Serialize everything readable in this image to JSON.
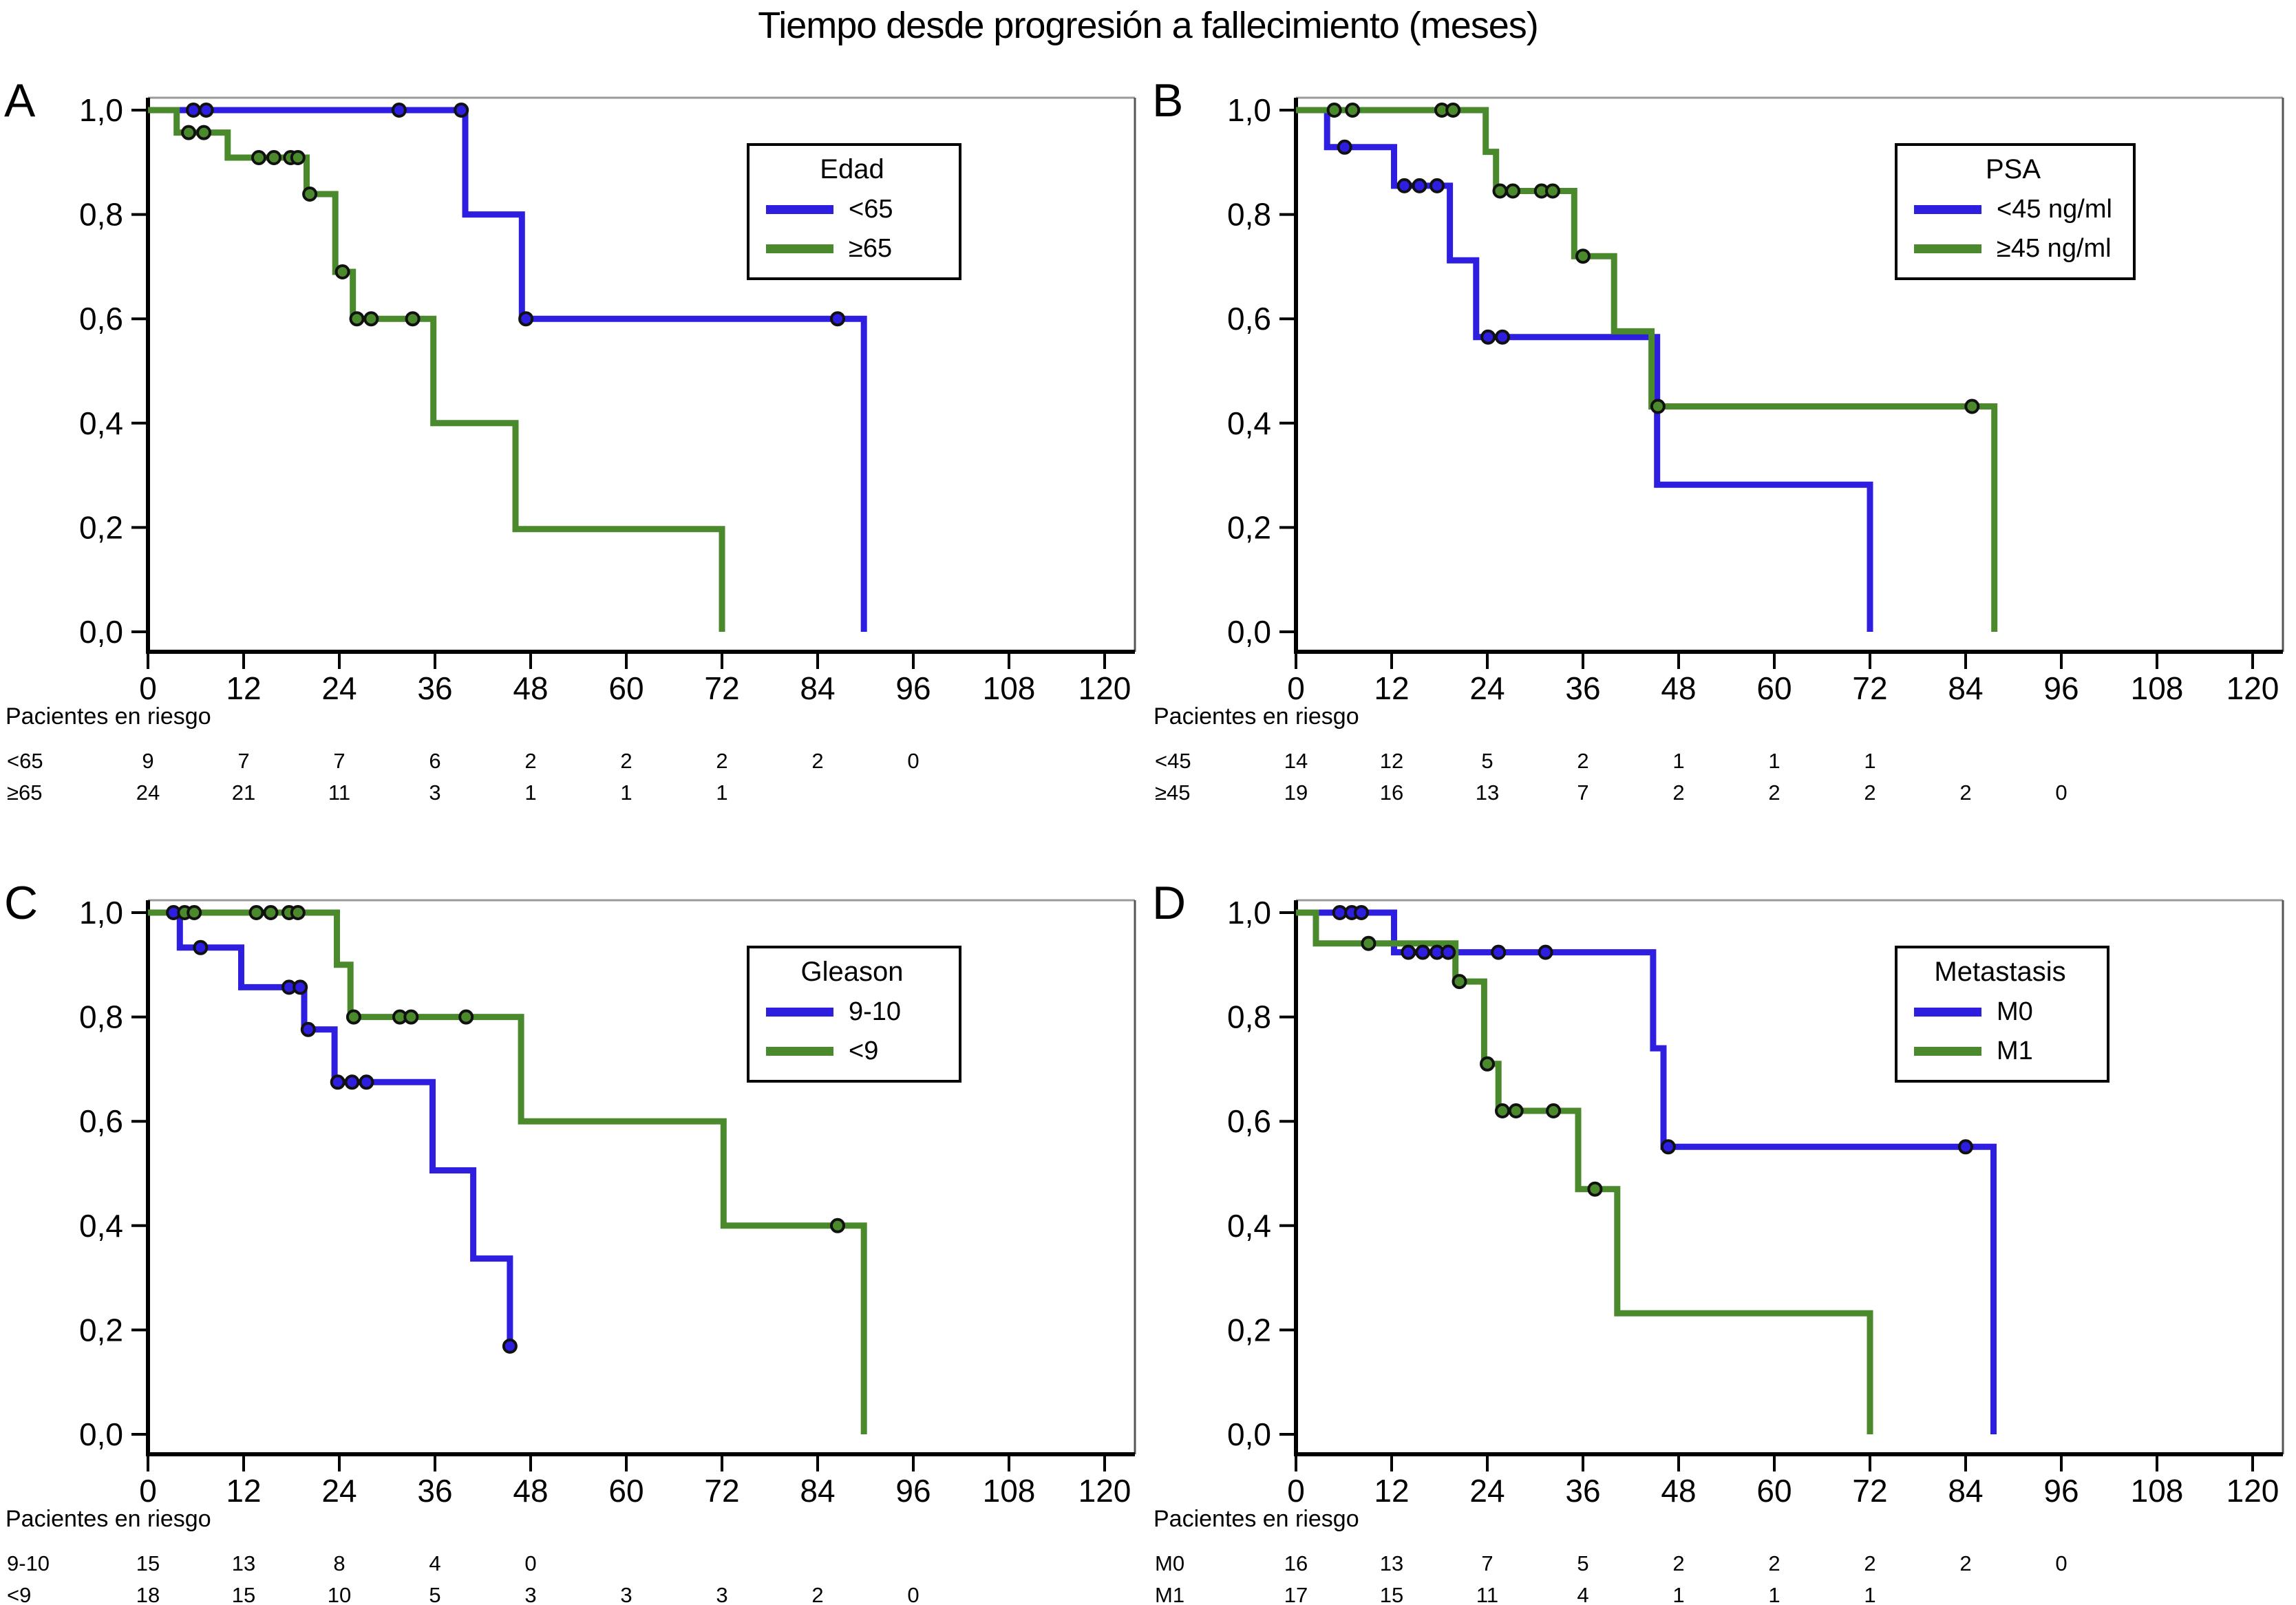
{
  "title": "Tiempo desde progresión a fallecimiento (meses)",
  "risk_header": "Pacientes en riesgo",
  "colors": {
    "blue": "#2d1ee0",
    "green": "#4a8a2c",
    "axis": "#000000",
    "frame_top": "#9a9a9a",
    "frame_right": "#555555",
    "censor_ring": "#111111"
  },
  "axes": {
    "x_ticks": [
      0,
      12,
      24,
      36,
      48,
      60,
      72,
      84,
      96,
      108,
      120
    ],
    "x_range": [
      0,
      120
    ],
    "y_range": [
      0,
      1
    ],
    "y_ticks": [
      {
        "v": 1.0,
        "label": "1,0"
      },
      {
        "v": 0.8,
        "label": "0,8"
      },
      {
        "v": 0.6,
        "label": "0,6"
      },
      {
        "v": 0.4,
        "label": "0,4"
      },
      {
        "v": 0.2,
        "label": "0,2"
      },
      {
        "v": 0.0,
        "label": "0,0"
      }
    ]
  },
  "chart_data": [
    {
      "panel": "A",
      "type": "line",
      "subtype": "kaplan-meier-step",
      "legend_title": "Edad",
      "series": [
        {
          "name": "<65",
          "color_key": "blue",
          "path": [
            [
              0,
              1
            ],
            [
              39.8,
              1
            ],
            [
              39.8,
              0.8
            ],
            [
              46.9,
              0.8
            ],
            [
              46.9,
              0.6
            ],
            [
              89.8,
              0.6
            ],
            [
              89.8,
              0
            ]
          ],
          "censors": [
            [
              5.7,
              1
            ],
            [
              7.3,
              1
            ],
            [
              31.5,
              1
            ],
            [
              39.3,
              1
            ],
            [
              47.4,
              0.6
            ],
            [
              86.5,
              0.6
            ]
          ]
        },
        {
          "name": "≥65",
          "color_key": "green",
          "path": [
            [
              0,
              1
            ],
            [
              3.6,
              1
            ],
            [
              3.6,
              0.957
            ],
            [
              10,
              0.957
            ],
            [
              10,
              0.909
            ],
            [
              19.9,
              0.909
            ],
            [
              19.9,
              0.839
            ],
            [
              23.5,
              0.839
            ],
            [
              23.5,
              0.69
            ],
            [
              25.7,
              0.69
            ],
            [
              25.7,
              0.6
            ],
            [
              35.8,
              0.6
            ],
            [
              35.8,
              0.4
            ],
            [
              46.1,
              0.4
            ],
            [
              46.1,
              0.197
            ],
            [
              72,
              0.197
            ],
            [
              72,
              0
            ]
          ],
          "censors": [
            [
              5.1,
              0.957
            ],
            [
              7,
              0.957
            ],
            [
              13.9,
              0.909
            ],
            [
              15.8,
              0.909
            ],
            [
              17.9,
              0.909
            ],
            [
              18.8,
              0.909
            ],
            [
              20.3,
              0.839
            ],
            [
              24.4,
              0.69
            ],
            [
              26.2,
              0.6
            ],
            [
              28,
              0.6
            ],
            [
              33.2,
              0.6
            ]
          ]
        }
      ],
      "risk_table": [
        {
          "label": "<65",
          "counts": [
            9,
            7,
            7,
            6,
            2,
            2,
            2,
            2,
            0
          ]
        },
        {
          "label": "≥65",
          "counts": [
            24,
            21,
            11,
            3,
            1,
            1,
            1
          ]
        }
      ]
    },
    {
      "panel": "B",
      "type": "line",
      "subtype": "kaplan-meier-step",
      "legend_title": "PSA",
      "series": [
        {
          "name": "<45 ng/ml",
          "color_key": "blue",
          "path": [
            [
              0,
              1
            ],
            [
              3.9,
              1
            ],
            [
              3.9,
              0.929
            ],
            [
              12.3,
              0.929
            ],
            [
              12.3,
              0.855
            ],
            [
              19.3,
              0.855
            ],
            [
              19.3,
              0.712
            ],
            [
              22.6,
              0.712
            ],
            [
              22.6,
              0.565
            ],
            [
              45.3,
              0.565
            ],
            [
              45.3,
              0.282
            ],
            [
              72,
              0.282
            ],
            [
              72,
              0
            ]
          ],
          "censors": [
            [
              6.1,
              0.929
            ],
            [
              13.6,
              0.855
            ],
            [
              15.5,
              0.855
            ],
            [
              17.7,
              0.855
            ],
            [
              24.1,
              0.565
            ],
            [
              25.9,
              0.565
            ]
          ]
        },
        {
          "name": "≥45 ng/ml",
          "color_key": "green",
          "path": [
            [
              0,
              1
            ],
            [
              23.8,
              1
            ],
            [
              23.8,
              0.92
            ],
            [
              25.1,
              0.92
            ],
            [
              25.1,
              0.845
            ],
            [
              34.9,
              0.845
            ],
            [
              34.9,
              0.72
            ],
            [
              39.9,
              0.72
            ],
            [
              39.9,
              0.576
            ],
            [
              44.6,
              0.576
            ],
            [
              44.6,
              0.432
            ],
            [
              87.6,
              0.432
            ],
            [
              87.6,
              0
            ]
          ],
          "censors": [
            [
              4.8,
              1
            ],
            [
              7.1,
              1
            ],
            [
              18.3,
              1
            ],
            [
              19.7,
              1
            ],
            [
              25.6,
              0.845
            ],
            [
              27.2,
              0.845
            ],
            [
              30.8,
              0.845
            ],
            [
              32.2,
              0.845
            ],
            [
              36,
              0.72
            ],
            [
              45.4,
              0.432
            ],
            [
              84.8,
              0.432
            ]
          ]
        }
      ],
      "risk_table": [
        {
          "label": "<45",
          "counts": [
            14,
            12,
            5,
            2,
            1,
            1,
            1
          ]
        },
        {
          "label": "≥45",
          "counts": [
            19,
            16,
            13,
            7,
            2,
            2,
            2,
            2,
            0
          ]
        }
      ]
    },
    {
      "panel": "C",
      "type": "line",
      "subtype": "kaplan-meier-step",
      "legend_title": "Gleason",
      "series": [
        {
          "name": "9-10",
          "color_key": "blue",
          "path": [
            [
              0,
              1
            ],
            [
              4,
              1
            ],
            [
              4,
              0.933
            ],
            [
              11.7,
              0.933
            ],
            [
              11.7,
              0.857
            ],
            [
              19.6,
              0.857
            ],
            [
              19.6,
              0.776
            ],
            [
              23.4,
              0.776
            ],
            [
              23.4,
              0.675
            ],
            [
              35.7,
              0.675
            ],
            [
              35.7,
              0.506
            ],
            [
              40.8,
              0.506
            ],
            [
              40.8,
              0.337
            ],
            [
              45.4,
              0.337
            ],
            [
              45.4,
              0.169
            ]
          ],
          "censors": [
            [
              3.2,
              1
            ],
            [
              6.6,
              0.933
            ],
            [
              17.7,
              0.857
            ],
            [
              19.1,
              0.857
            ],
            [
              20.1,
              0.776
            ],
            [
              23.8,
              0.675
            ],
            [
              25.6,
              0.675
            ],
            [
              27.4,
              0.675
            ],
            [
              45.4,
              0.169
            ]
          ]
        },
        {
          "name": "<9",
          "color_key": "green",
          "path": [
            [
              0,
              1
            ],
            [
              23.7,
              1
            ],
            [
              23.7,
              0.9
            ],
            [
              25.4,
              0.9
            ],
            [
              25.4,
              0.8
            ],
            [
              46.8,
              0.8
            ],
            [
              46.8,
              0.6
            ],
            [
              72.2,
              0.6
            ],
            [
              72.2,
              0.4
            ],
            [
              89.8,
              0.4
            ],
            [
              89.8,
              0
            ]
          ],
          "censors": [
            [
              4.6,
              1
            ],
            [
              5.8,
              1
            ],
            [
              13.6,
              1
            ],
            [
              15.4,
              1
            ],
            [
              17.7,
              1
            ],
            [
              18.8,
              1
            ],
            [
              25.8,
              0.8
            ],
            [
              31.6,
              0.8
            ],
            [
              33,
              0.8
            ],
            [
              39.9,
              0.8
            ],
            [
              86.5,
              0.4
            ]
          ]
        }
      ],
      "risk_table": [
        {
          "label": "9-10",
          "counts": [
            15,
            13,
            8,
            4,
            0
          ]
        },
        {
          "label": "<9",
          "counts": [
            18,
            15,
            10,
            5,
            3,
            3,
            3,
            2,
            0
          ]
        }
      ]
    },
    {
      "panel": "D",
      "type": "line",
      "subtype": "kaplan-meier-step",
      "legend_title": "Metastasis",
      "series": [
        {
          "name": "M0",
          "color_key": "blue",
          "path": [
            [
              0,
              1
            ],
            [
              12.3,
              1
            ],
            [
              12.3,
              0.924
            ],
            [
              44.8,
              0.924
            ],
            [
              44.8,
              0.74
            ],
            [
              46.1,
              0.74
            ],
            [
              46.1,
              0.551
            ],
            [
              87.5,
              0.551
            ],
            [
              87.5,
              0
            ]
          ],
          "censors": [
            [
              5.5,
              1
            ],
            [
              7,
              1
            ],
            [
              8.2,
              1
            ],
            [
              14.1,
              0.924
            ],
            [
              15.9,
              0.924
            ],
            [
              17.7,
              0.924
            ],
            [
              19.1,
              0.924
            ],
            [
              25.4,
              0.924
            ],
            [
              31.3,
              0.924
            ],
            [
              46.7,
              0.551
            ],
            [
              84,
              0.551
            ]
          ]
        },
        {
          "name": "M1",
          "color_key": "green",
          "path": [
            [
              0,
              1
            ],
            [
              2.5,
              1
            ],
            [
              2.5,
              0.941
            ],
            [
              20,
              0.941
            ],
            [
              20,
              0.868
            ],
            [
              23.6,
              0.868
            ],
            [
              23.6,
              0.71
            ],
            [
              25.4,
              0.71
            ],
            [
              25.4,
              0.62
            ],
            [
              35.4,
              0.62
            ],
            [
              35.4,
              0.47
            ],
            [
              40.3,
              0.47
            ],
            [
              40.3,
              0.232
            ],
            [
              72,
              0.232
            ],
            [
              72,
              0
            ]
          ],
          "censors": [
            [
              9.1,
              0.941
            ],
            [
              20.5,
              0.868
            ],
            [
              24,
              0.71
            ],
            [
              25.9,
              0.62
            ],
            [
              27.6,
              0.62
            ],
            [
              32.3,
              0.62
            ],
            [
              37.5,
              0.47
            ]
          ]
        }
      ],
      "risk_table": [
        {
          "label": "M0",
          "counts": [
            16,
            13,
            7,
            5,
            2,
            2,
            2,
            2,
            0
          ]
        },
        {
          "label": "M1",
          "counts": [
            17,
            15,
            11,
            4,
            1,
            1,
            1
          ]
        }
      ]
    }
  ]
}
